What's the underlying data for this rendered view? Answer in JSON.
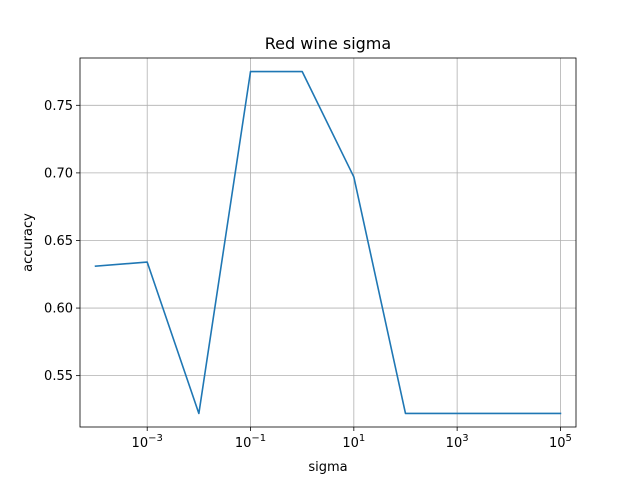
{
  "chart_data": {
    "type": "line",
    "title": "Red wine sigma",
    "xlabel": "sigma",
    "ylabel": "accuracy",
    "xscale": "log",
    "xlim": [
      5e-05,
      200000
    ],
    "ylim": [
      0.512,
      0.785
    ],
    "grid": true,
    "xticks": [
      {
        "value": 0.001,
        "base": "10",
        "exp": "−3"
      },
      {
        "value": 0.1,
        "base": "10",
        "exp": "−1"
      },
      {
        "value": 10,
        "base": "10",
        "exp": "1"
      },
      {
        "value": 1000,
        "base": "10",
        "exp": "3"
      },
      {
        "value": 100000,
        "base": "10",
        "exp": "5"
      }
    ],
    "yticks": [
      {
        "value": 0.55,
        "label": "0.55"
      },
      {
        "value": 0.6,
        "label": "0.60"
      },
      {
        "value": 0.65,
        "label": "0.65"
      },
      {
        "value": 0.7,
        "label": "0.70"
      },
      {
        "value": 0.75,
        "label": "0.75"
      }
    ],
    "series": [
      {
        "color": "#1f77b4",
        "x": [
          0.0001,
          0.001,
          0.01,
          0.1,
          1,
          10,
          100,
          1000,
          10000,
          100000
        ],
        "y": [
          0.631,
          0.634,
          0.522,
          0.775,
          0.775,
          0.697,
          0.522,
          0.522,
          0.522,
          0.522
        ]
      }
    ]
  }
}
